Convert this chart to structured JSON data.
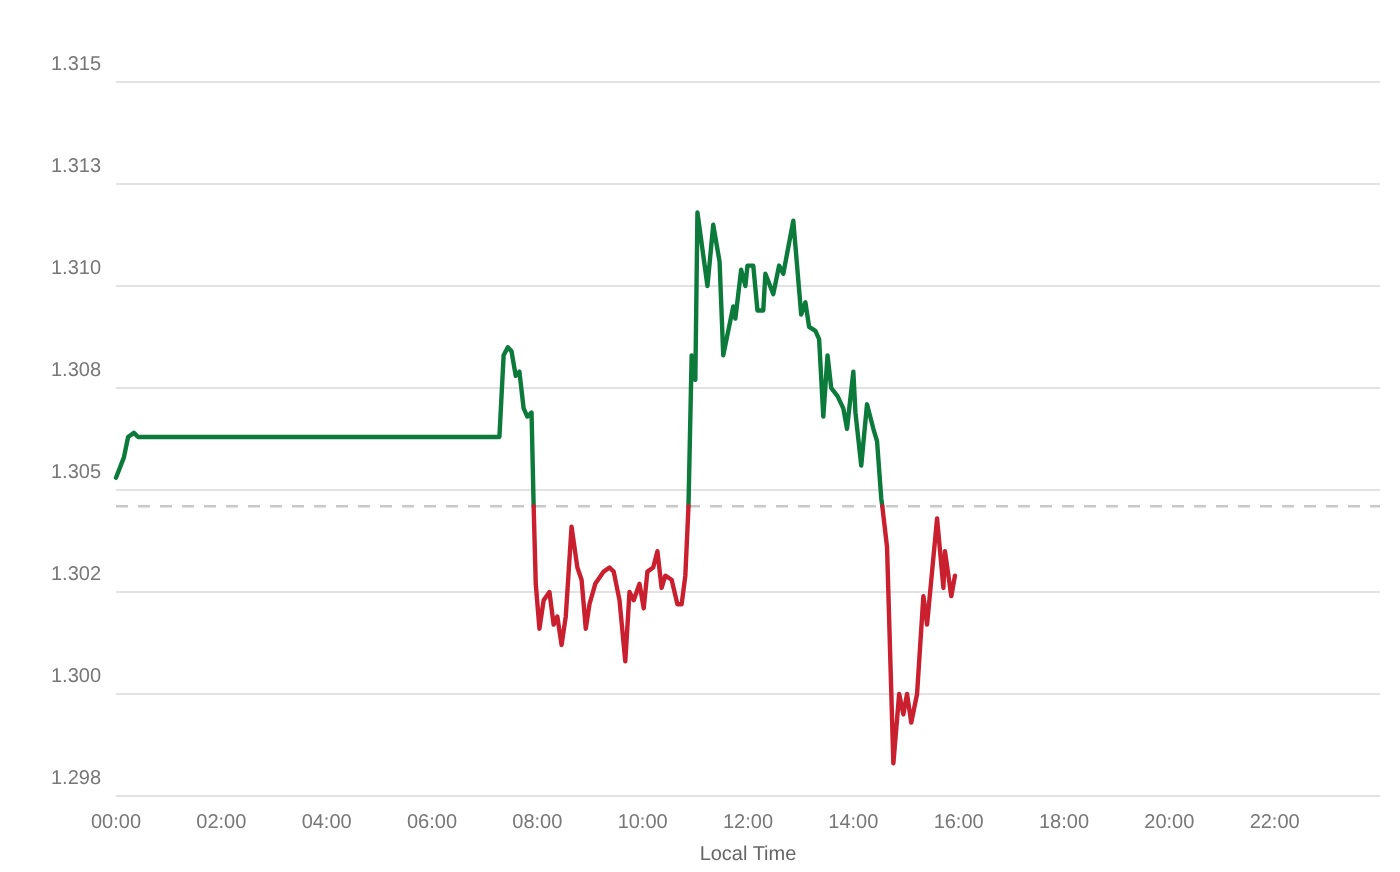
{
  "chart_data": {
    "type": "line",
    "xlabel": "Local Time",
    "xlim": [
      0,
      24
    ],
    "xticks": [
      {
        "value": 0,
        "label": "00:00"
      },
      {
        "value": 2,
        "label": "02:00"
      },
      {
        "value": 4,
        "label": "04:00"
      },
      {
        "value": 6,
        "label": "06:00"
      },
      {
        "value": 8,
        "label": "08:00"
      },
      {
        "value": 10,
        "label": "10:00"
      },
      {
        "value": 12,
        "label": "12:00"
      },
      {
        "value": 14,
        "label": "14:00"
      },
      {
        "value": 16,
        "label": "16:00"
      },
      {
        "value": 18,
        "label": "18:00"
      },
      {
        "value": 20,
        "label": "20:00"
      },
      {
        "value": 22,
        "label": "22:00"
      }
    ],
    "ylim": [
      1.2975,
      1.315
    ],
    "yticks": [
      {
        "value": 1.2975,
        "label": "1.298"
      },
      {
        "value": 1.3,
        "label": "1.300"
      },
      {
        "value": 1.3025,
        "label": "1.302"
      },
      {
        "value": 1.305,
        "label": "1.305"
      },
      {
        "value": 1.3075,
        "label": "1.308"
      },
      {
        "value": 1.31,
        "label": "1.310"
      },
      {
        "value": 1.3125,
        "label": "1.313"
      },
      {
        "value": 1.315,
        "label": "1.315"
      }
    ],
    "grid": "y",
    "marker": "none",
    "line_style": "solid",
    "ref_lines": [
      {
        "axis": "y",
        "value": 1.3046,
        "color": "#c8c8c8",
        "line_style": "dashed"
      }
    ],
    "series": [
      {
        "color": "#0b7a3b",
        "x": [
          0,
          0.15,
          0.23,
          0.34,
          0.42,
          7.28,
          7.36,
          7.44,
          7.51,
          7.59,
          7.66,
          7.74,
          7.81,
          7.89,
          7.93,
          9.0,
          10.87,
          10.93,
          11.0,
          11.04,
          11.23,
          11.34,
          11.46,
          11.53,
          11.72,
          11.76,
          11.87,
          11.95,
          11.99,
          12.1,
          12.18,
          12.29,
          12.33,
          12.48,
          12.59,
          12.67,
          12.86,
          13.01,
          13.09,
          13.16,
          13.28,
          13.35,
          13.43,
          13.51,
          13.58,
          13.7,
          13.81,
          13.88,
          14.0,
          14.04,
          14.15,
          14.26,
          14.38,
          14.45,
          14.53,
          14.55
        ],
        "values": [
          1.3053,
          1.3058,
          1.3063,
          1.3064,
          1.3063,
          1.3063,
          1.3083,
          1.3085,
          1.3084,
          1.3078,
          1.3079,
          1.307,
          1.3068,
          1.3069,
          1.3046,
          null,
          1.3046,
          1.3083,
          1.3077,
          1.3118,
          1.31,
          1.3115,
          1.3106,
          1.3083,
          1.3095,
          1.3092,
          1.3104,
          1.31,
          1.3105,
          1.3105,
          1.3094,
          1.3094,
          1.3103,
          1.3098,
          1.3105,
          1.3103,
          1.3116,
          1.3093,
          1.3096,
          1.309,
          1.3089,
          1.3087,
          1.3068,
          1.3083,
          1.3075,
          1.3073,
          1.307,
          1.3065,
          1.3079,
          1.3069,
          1.3056,
          1.3071,
          1.3065,
          1.3062,
          1.3048,
          1.3046
        ]
      },
      {
        "color": "#c91f2e",
        "x": [
          7.93,
          7.97,
          8.04,
          8.12,
          8.23,
          8.31,
          8.38,
          8.46,
          8.54,
          8.65,
          8.76,
          8.84,
          8.92,
          8.99,
          9.1,
          9.26,
          9.37,
          9.45,
          9.56,
          9.67,
          9.75,
          9.83,
          9.94,
          10.02,
          10.09,
          10.2,
          10.28,
          10.36,
          10.43,
          10.55,
          10.66,
          10.74,
          10.81,
          10.87,
          12.0,
          14.55,
          14.64,
          14.76,
          14.87,
          14.95,
          15.02,
          15.1,
          15.21,
          15.33,
          15.4,
          15.59,
          15.71,
          15.74,
          15.86,
          15.93
        ],
        "values": [
          1.3046,
          1.3027,
          1.3016,
          1.3023,
          1.3025,
          1.3017,
          1.3019,
          1.3012,
          1.3019,
          1.3041,
          1.3031,
          1.3028,
          1.3016,
          1.3022,
          1.3027,
          1.303,
          1.3031,
          1.303,
          1.3023,
          1.3008,
          1.3025,
          1.3023,
          1.3027,
          1.3021,
          1.303,
          1.3031,
          1.3035,
          1.3026,
          1.3029,
          1.3028,
          1.3022,
          1.3022,
          1.3029,
          1.3046,
          null,
          1.3046,
          1.3036,
          1.2983,
          1.3,
          1.2995,
          1.3,
          1.2993,
          1.3,
          1.3024,
          1.3017,
          1.3043,
          1.3026,
          1.3035,
          1.3024,
          1.3029
        ]
      }
    ]
  }
}
